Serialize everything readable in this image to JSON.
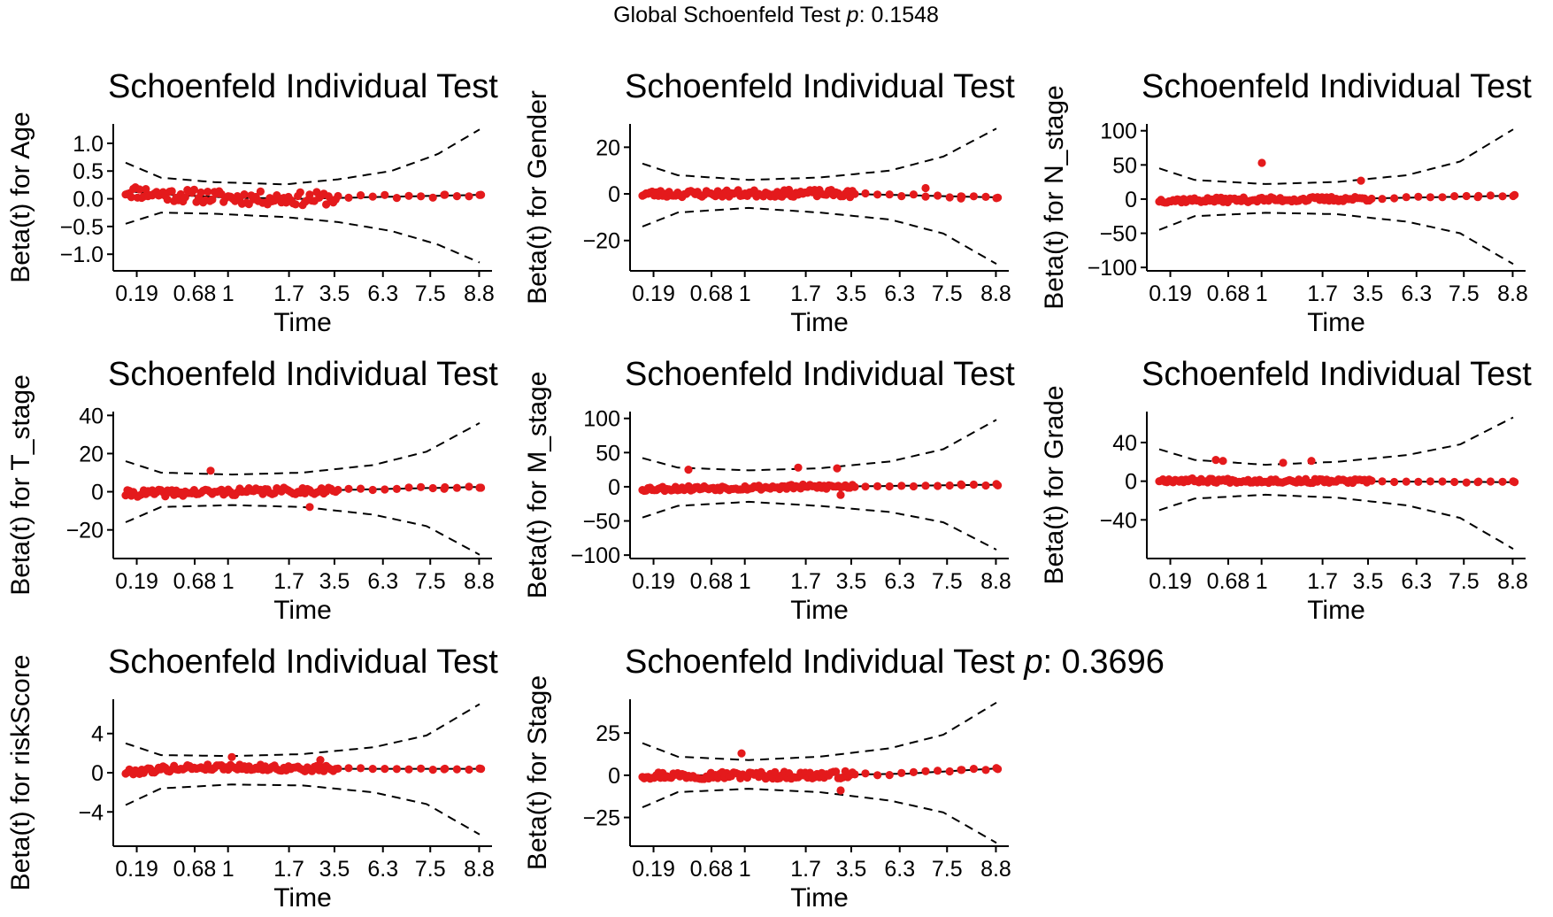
{
  "global_title": {
    "prefix": "Global Schoenfeld Test ",
    "p": "p",
    "value": ": 0.1548"
  },
  "colors": {
    "point": "#e41a1c",
    "line": "#000000"
  },
  "chart_data": [
    {
      "type": "scatter",
      "name": "age",
      "title": "Schoenfeld Individual Test",
      "title_p": "",
      "xlabel": "Time",
      "ylabel": "Beta(t) for Age",
      "xticks": [
        "0.19",
        "0.68",
        "1",
        "1.7",
        "3.5",
        "6.3",
        "7.5",
        "8.8"
      ],
      "yticks": [
        1.0,
        0.5,
        0.0,
        -0.5,
        -1.0
      ],
      "ytick_labels": [
        "1.0",
        "0.5",
        "0.0",
        "-0.5",
        "-1.0"
      ],
      "ylim": [
        -1.3,
        1.35
      ],
      "seed": 11,
      "smooth": [
        [
          0.0,
          0.14
        ],
        [
          0.1,
          0.08
        ],
        [
          0.3,
          0.02
        ],
        [
          0.5,
          0.0
        ],
        [
          0.7,
          0.03
        ],
        [
          1.0,
          0.07
        ]
      ],
      "band": [
        [
          0.0,
          0.65
        ],
        [
          0.1,
          0.38
        ],
        [
          0.25,
          0.3
        ],
        [
          0.45,
          0.26
        ],
        [
          0.6,
          0.35
        ],
        [
          0.75,
          0.5
        ],
        [
          0.88,
          0.8
        ],
        [
          1.0,
          1.25
        ]
      ],
      "band_low": [
        [
          0.0,
          -0.45
        ],
        [
          0.1,
          -0.25
        ],
        [
          0.25,
          -0.27
        ],
        [
          0.45,
          -0.33
        ],
        [
          0.6,
          -0.42
        ],
        [
          0.75,
          -0.58
        ],
        [
          0.88,
          -0.82
        ],
        [
          1.0,
          -1.15
        ]
      ],
      "noise": 0.12,
      "extras": []
    },
    {
      "type": "scatter",
      "name": "gender",
      "title": "Schoenfeld Individual Test",
      "title_p": "",
      "xlabel": "Time",
      "ylabel": "Beta(t) for Gender",
      "xticks": [
        "0.19",
        "0.68",
        "1",
        "1.7",
        "3.5",
        "6.3",
        "7.5",
        "8.8"
      ],
      "yticks": [
        20,
        0,
        -20
      ],
      "ytick_labels": [
        "20",
        "0",
        "-20"
      ],
      "ylim": [
        -33,
        30
      ],
      "seed": 23,
      "smooth": [
        [
          0.0,
          0.0
        ],
        [
          0.5,
          0.3
        ],
        [
          1.0,
          -1.5
        ]
      ],
      "band": [
        [
          0.0,
          13
        ],
        [
          0.1,
          8
        ],
        [
          0.3,
          6
        ],
        [
          0.5,
          7
        ],
        [
          0.7,
          10
        ],
        [
          0.85,
          16
        ],
        [
          1.0,
          28
        ]
      ],
      "band_low": [
        [
          0.0,
          -14
        ],
        [
          0.1,
          -8
        ],
        [
          0.3,
          -6
        ],
        [
          0.5,
          -8
        ],
        [
          0.7,
          -11
        ],
        [
          0.85,
          -17
        ],
        [
          1.0,
          -30
        ]
      ],
      "noise": 1.5,
      "extras": [
        [
          0.8,
          2.5
        ],
        [
          0.9,
          -2.0
        ]
      ]
    },
    {
      "type": "scatter",
      "name": "n_stage",
      "title": "Schoenfeld Individual Test",
      "title_p": "",
      "xlabel": "Time",
      "ylabel": "Beta(t) for N_stage",
      "xticks": [
        "0.19",
        "0.68",
        "1",
        "1.7",
        "3.5",
        "6.3",
        "7.5",
        "8.8"
      ],
      "yticks": [
        100,
        50,
        0,
        -50,
        -100
      ],
      "ytick_labels": [
        "100",
        "50",
        "0",
        "-50",
        "-100"
      ],
      "ylim": [
        -105,
        110
      ],
      "seed": 37,
      "smooth": [
        [
          0.0,
          -2
        ],
        [
          0.5,
          0
        ],
        [
          1.0,
          5
        ]
      ],
      "band": [
        [
          0.0,
          45
        ],
        [
          0.1,
          28
        ],
        [
          0.3,
          22
        ],
        [
          0.5,
          25
        ],
        [
          0.7,
          35
        ],
        [
          0.85,
          55
        ],
        [
          1.0,
          102
        ]
      ],
      "band_low": [
        [
          0.0,
          -45
        ],
        [
          0.1,
          -25
        ],
        [
          0.3,
          -20
        ],
        [
          0.5,
          -22
        ],
        [
          0.7,
          -33
        ],
        [
          0.85,
          -50
        ],
        [
          1.0,
          -95
        ]
      ],
      "noise": 3.5,
      "extras": [
        [
          0.29,
          53
        ],
        [
          0.57,
          27
        ]
      ]
    },
    {
      "type": "scatter",
      "name": "t_stage",
      "title": "Schoenfeld Individual Test",
      "title_p": "",
      "xlabel": "Time",
      "ylabel": "Beta(t) for T_stage",
      "xticks": [
        "0.19",
        "0.68",
        "1",
        "1.7",
        "3.5",
        "6.3",
        "7.5",
        "8.8"
      ],
      "yticks": [
        40,
        20,
        0,
        -20
      ],
      "ytick_labels": [
        "40",
        "20",
        "0",
        "-20"
      ],
      "ylim": [
        -35,
        42
      ],
      "seed": 41,
      "smooth": [
        [
          0.0,
          -1
        ],
        [
          0.5,
          0.5
        ],
        [
          1.0,
          2.5
        ]
      ],
      "band": [
        [
          0.0,
          16
        ],
        [
          0.1,
          10
        ],
        [
          0.3,
          9
        ],
        [
          0.5,
          10
        ],
        [
          0.7,
          14
        ],
        [
          0.85,
          21
        ],
        [
          1.0,
          36
        ]
      ],
      "band_low": [
        [
          0.0,
          -16
        ],
        [
          0.1,
          -8
        ],
        [
          0.3,
          -7
        ],
        [
          0.5,
          -8
        ],
        [
          0.7,
          -12
        ],
        [
          0.85,
          -18
        ],
        [
          1.0,
          -33
        ]
      ],
      "noise": 1.8,
      "extras": [
        [
          0.24,
          11
        ],
        [
          0.52,
          -8
        ]
      ]
    },
    {
      "type": "scatter",
      "name": "m_stage",
      "title": "Schoenfeld Individual Test",
      "title_p": "",
      "xlabel": "Time",
      "ylabel": "Beta(t) for M_stage",
      "xticks": [
        "0.19",
        "0.68",
        "1",
        "1.7",
        "3.5",
        "6.3",
        "7.5",
        "8.8"
      ],
      "yticks": [
        100,
        50,
        0,
        -50,
        -100
      ],
      "ytick_labels": [
        "100",
        "50",
        "0",
        "-50",
        "-100"
      ],
      "ylim": [
        -105,
        110
      ],
      "seed": 53,
      "smooth": [
        [
          0.0,
          -3
        ],
        [
          0.5,
          0
        ],
        [
          1.0,
          3
        ]
      ],
      "band": [
        [
          0.0,
          42
        ],
        [
          0.1,
          28
        ],
        [
          0.3,
          24
        ],
        [
          0.5,
          27
        ],
        [
          0.7,
          37
        ],
        [
          0.85,
          55
        ],
        [
          1.0,
          98
        ]
      ],
      "band_low": [
        [
          0.0,
          -45
        ],
        [
          0.1,
          -28
        ],
        [
          0.3,
          -22
        ],
        [
          0.5,
          -28
        ],
        [
          0.7,
          -37
        ],
        [
          0.85,
          -52
        ],
        [
          1.0,
          -92
        ]
      ],
      "noise": 3.5,
      "extras": [
        [
          0.13,
          25
        ],
        [
          0.44,
          28
        ],
        [
          0.55,
          27
        ],
        [
          0.56,
          -12
        ]
      ]
    },
    {
      "type": "scatter",
      "name": "grade",
      "title": "Schoenfeld Individual Test",
      "title_p": "",
      "xlabel": "Time",
      "ylabel": "Beta(t) for Grade",
      "xticks": [
        "0.19",
        "0.68",
        "1",
        "1.7",
        "3.5",
        "6.3",
        "7.5",
        "8.8"
      ],
      "yticks": [
        40,
        0,
        -40
      ],
      "ytick_labels": [
        "40",
        "0",
        "-40"
      ],
      "ylim": [
        -80,
        72
      ],
      "seed": 67,
      "smooth": [
        [
          0.0,
          1
        ],
        [
          0.5,
          0
        ],
        [
          1.0,
          -1
        ]
      ],
      "band": [
        [
          0.0,
          33
        ],
        [
          0.1,
          22
        ],
        [
          0.3,
          17
        ],
        [
          0.5,
          20
        ],
        [
          0.7,
          27
        ],
        [
          0.85,
          38
        ],
        [
          1.0,
          66
        ]
      ],
      "band_low": [
        [
          0.0,
          -30
        ],
        [
          0.1,
          -18
        ],
        [
          0.3,
          -14
        ],
        [
          0.5,
          -17
        ],
        [
          0.7,
          -25
        ],
        [
          0.85,
          -38
        ],
        [
          1.0,
          -70
        ]
      ],
      "noise": 2.2,
      "extras": [
        [
          0.16,
          22
        ],
        [
          0.18,
          21
        ],
        [
          0.35,
          19
        ],
        [
          0.43,
          21
        ]
      ]
    },
    {
      "type": "scatter",
      "name": "riskscore",
      "title": "Schoenfeld Individual Test",
      "title_p": "",
      "xlabel": "Time",
      "ylabel": "Beta(t) for riskScore",
      "xticks": [
        "0.19",
        "0.68",
        "1",
        "1.7",
        "3.5",
        "6.3",
        "7.5",
        "8.8"
      ],
      "yticks": [
        4,
        0,
        -4
      ],
      "ytick_labels": [
        "4",
        "0",
        "-4"
      ],
      "ylim": [
        -7.5,
        7.5
      ],
      "seed": 79,
      "smooth": [
        [
          0.0,
          0.05
        ],
        [
          0.15,
          0.5
        ],
        [
          0.3,
          0.6
        ],
        [
          0.5,
          0.4
        ],
        [
          1.0,
          0.4
        ]
      ],
      "band": [
        [
          0.0,
          3.0
        ],
        [
          0.1,
          1.8
        ],
        [
          0.3,
          1.7
        ],
        [
          0.5,
          1.9
        ],
        [
          0.7,
          2.6
        ],
        [
          0.85,
          3.8
        ],
        [
          1.0,
          7.0
        ]
      ],
      "band_low": [
        [
          0.0,
          -3.3
        ],
        [
          0.1,
          -1.6
        ],
        [
          0.3,
          -1.2
        ],
        [
          0.5,
          -1.3
        ],
        [
          0.7,
          -2.0
        ],
        [
          0.85,
          -3.2
        ],
        [
          1.0,
          -6.3
        ]
      ],
      "noise": 0.3,
      "extras": [
        [
          0.3,
          1.6
        ],
        [
          0.55,
          1.3
        ]
      ]
    },
    {
      "type": "scatter",
      "name": "stage",
      "title": "Schoenfeld Individual Test",
      "title_p": "p",
      "title_value": ": 0.3696",
      "xlabel": "Time",
      "ylabel": "Beta(t) for Stage",
      "xticks": [
        "0.19",
        "0.68",
        "1",
        "1.7",
        "3.5",
        "6.3",
        "7.5",
        "8.8"
      ],
      "yticks": [
        25,
        0,
        -25
      ],
      "ytick_labels": [
        "25",
        "0",
        "-25"
      ],
      "ylim": [
        -42,
        45
      ],
      "seed": 97,
      "smooth": [
        [
          0.0,
          0
        ],
        [
          0.5,
          0
        ],
        [
          0.75,
          1
        ],
        [
          1.0,
          4
        ]
      ],
      "band": [
        [
          0.0,
          19
        ],
        [
          0.1,
          11
        ],
        [
          0.3,
          9
        ],
        [
          0.5,
          11
        ],
        [
          0.7,
          16
        ],
        [
          0.85,
          24
        ],
        [
          1.0,
          43
        ]
      ],
      "band_low": [
        [
          0.0,
          -19
        ],
        [
          0.1,
          -10
        ],
        [
          0.3,
          -8
        ],
        [
          0.5,
          -10
        ],
        [
          0.7,
          -15
        ],
        [
          0.85,
          -22
        ],
        [
          1.0,
          -40
        ]
      ],
      "noise": 2.2,
      "extras": [
        [
          0.28,
          13
        ],
        [
          0.56,
          -9
        ]
      ]
    }
  ]
}
